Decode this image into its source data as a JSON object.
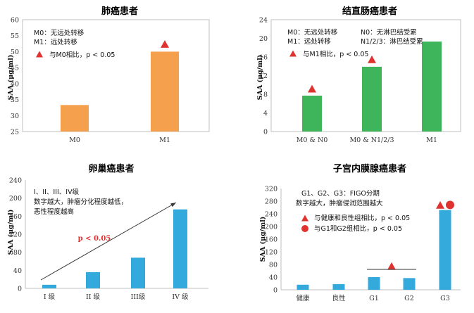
{
  "chart_data": [
    {
      "type": "bar",
      "title": "肺癌患者",
      "ylabel": "SAA (μg/ml)",
      "ylim": [
        25,
        60
      ],
      "yticks": [
        25,
        30,
        35,
        40,
        45,
        50,
        55,
        60
      ],
      "categories": [
        "M0",
        "M1"
      ],
      "values": [
        33.3,
        50.0
      ],
      "bar_color": "#f5a04c",
      "notes": [
        "M0：无远处转移",
        "M1：远处转移"
      ],
      "legend_symbols": [
        {
          "shape": "triangle",
          "color": "#e0322f",
          "text": "与M0相比，p < 0.05"
        }
      ],
      "markers": [
        {
          "category": "M1",
          "shape": "triangle",
          "value": 52.4
        }
      ]
    },
    {
      "type": "bar",
      "title": "结直肠癌患者",
      "ylabel": "SAA (μg/ml)",
      "ylim": [
        0,
        24
      ],
      "yticks": [
        0,
        4,
        8,
        12,
        16,
        20,
        24
      ],
      "categories": [
        "M0 & N0",
        "M0 & N1/2/3",
        "M1"
      ],
      "values": [
        7.7,
        13.9,
        19.3
      ],
      "bar_color": "#3fb55b",
      "notes": [
        "M0：无远处转移",
        "M1：远处转移",
        "N0：无淋巴结受累",
        "N1/2/3：淋巴结受累"
      ],
      "legend_symbols": [
        {
          "shape": "triangle",
          "color": "#e0322f",
          "text": "与M1相比，p < 0.05"
        }
      ],
      "markers": [
        {
          "category": "M0 & N0",
          "shape": "triangle",
          "value": 9.2
        },
        {
          "category": "M0 & N1/2/3",
          "shape": "triangle",
          "value": 15.5
        }
      ]
    },
    {
      "type": "bar",
      "title": "卵巢癌患者",
      "ylabel": "SAA (μg/ml)",
      "ylim": [
        0,
        240
      ],
      "yticks": [
        0,
        40,
        80,
        120,
        160,
        200,
        240
      ],
      "categories": [
        "I 级",
        "II 级",
        "III级",
        "IV 级"
      ],
      "values": [
        8,
        36,
        68,
        175
      ],
      "bar_color": "#33a9dc",
      "notes": [
        "I、II、III、IV级",
        "数字越大，肿瘤分化程度越低，",
        "恶性程度越高"
      ],
      "annotation": "p < 0.05"
    },
    {
      "type": "bar",
      "title": "子宫内膜腺癌患者",
      "ylabel": "SAA (μg/ml)",
      "ylim": [
        0,
        320
      ],
      "yticks": [
        0,
        40,
        80,
        120,
        160,
        200,
        240,
        280,
        320
      ],
      "categories": [
        "健康",
        "良性",
        "G1",
        "G2",
        "G3"
      ],
      "values": [
        16,
        18,
        40,
        37,
        252
      ],
      "bar_color": "#33a9dc",
      "notes": [
        "G1、G2、G3：FIGO分期",
        "数字越大，肿瘤侵润范围越大"
      ],
      "legend_symbols": [
        {
          "shape": "triangle",
          "color": "#e0322f",
          "text": "与健康和良性组相比，p < 0.05"
        },
        {
          "shape": "circle",
          "color": "#e0322f",
          "text": "与G1和G2组相比，p < 0.05"
        }
      ],
      "markers": [
        {
          "category": "G1-G2",
          "shape": "triangle",
          "value": 75
        },
        {
          "category": "G3",
          "shape": "triangle",
          "value": 268
        },
        {
          "category": "G3",
          "shape": "circle",
          "value": 268
        }
      ]
    }
  ]
}
